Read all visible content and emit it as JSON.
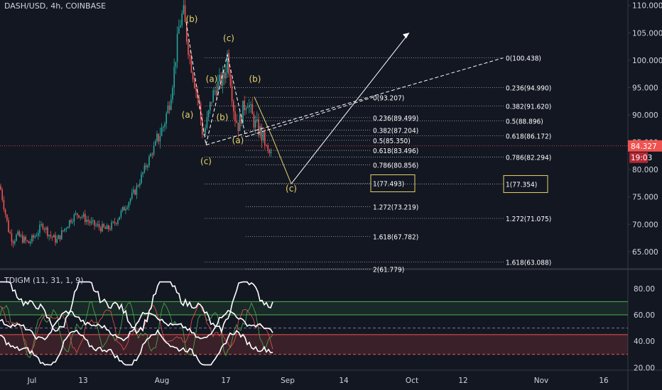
{
  "header": {
    "title": "DASH/USD, 4h, COINBASE"
  },
  "indicator": {
    "title": "TDIGM (11, 31, 1, 9)"
  },
  "colors": {
    "bg": "#131722",
    "grid": "#363a45",
    "text": "#d1d4dc",
    "up": "#26a69a",
    "down": "#ef5350",
    "label": "#e6d36a",
    "price_tag": "#ef5350"
  },
  "chart_data": [
    {
      "type": "candlestick",
      "title": "DASH/USD, 4h, COINBASE",
      "y_ticks": [
        "110.000",
        "105.000",
        "100.000",
        "95.000",
        "90.000",
        "85.000",
        "80.000",
        "75.000",
        "70.000",
        "65.000"
      ],
      "ylim": [
        62,
        111
      ],
      "x_ticks": [
        "Jul",
        "13",
        "Aug",
        "17",
        "Sep",
        "14",
        "Oct",
        "12",
        "Nov",
        "16"
      ],
      "price_path": [
        [
          0,
          77
        ],
        [
          6,
          73
        ],
        [
          12,
          69
        ],
        [
          18,
          67
        ],
        [
          24,
          68
        ],
        [
          30,
          67.5
        ],
        [
          40,
          66.5
        ],
        [
          50,
          68
        ],
        [
          60,
          70
        ],
        [
          70,
          68
        ],
        [
          80,
          67
        ],
        [
          90,
          69
        ],
        [
          100,
          71
        ],
        [
          110,
          72
        ],
        [
          120,
          71
        ],
        [
          130,
          70
        ],
        [
          140,
          69.5
        ],
        [
          150,
          69
        ],
        [
          160,
          70
        ],
        [
          170,
          72
        ],
        [
          180,
          74
        ],
        [
          190,
          76
        ],
        [
          200,
          79
        ],
        [
          210,
          82
        ],
        [
          220,
          85
        ],
        [
          230,
          88
        ],
        [
          238,
          92
        ],
        [
          245,
          98
        ],
        [
          252,
          106
        ],
        [
          258,
          109
        ],
        [
          263,
          104
        ],
        [
          268,
          100
        ],
        [
          274,
          96
        ],
        [
          280,
          92
        ],
        [
          286,
          86
        ],
        [
          292,
          89
        ],
        [
          298,
          93
        ],
        [
          304,
          95
        ],
        [
          310,
          96
        ],
        [
          316,
          97
        ],
        [
          320,
          101
        ],
        [
          325,
          96
        ],
        [
          330,
          90
        ],
        [
          336,
          88
        ],
        [
          342,
          91
        ],
        [
          348,
          93
        ],
        [
          354,
          90
        ],
        [
          360,
          88
        ],
        [
          366,
          87
        ],
        [
          372,
          85
        ],
        [
          378,
          83
        ],
        [
          382,
          82.8
        ]
      ],
      "current_price": "84.327",
      "countdown": "19:03",
      "wave_labels": [
        {
          "text": "(b)",
          "x": 270,
          "y": 107
        },
        {
          "text": "(c)",
          "x": 322,
          "y": 103.5
        },
        {
          "text": "(a)",
          "x": 298,
          "y": 96
        },
        {
          "text": "(b)",
          "x": 359,
          "y": 96
        },
        {
          "text": "(a)",
          "x": 264,
          "y": 89.5
        },
        {
          "text": "(b)",
          "x": 313,
          "y": 89
        },
        {
          "text": "(c)",
          "x": 290,
          "y": 81
        },
        {
          "text": "(a)",
          "x": 335,
          "y": 84.8
        },
        {
          "text": "(c)",
          "x": 410,
          "y": 76
        }
      ],
      "fib_levels": [
        {
          "text": "0(100.438)",
          "y": 100.438,
          "x0": 288,
          "x1": 710,
          "lx": 712
        },
        {
          "text": "0.236(94.990)",
          "y": 94.99,
          "x0": 288,
          "x1": 710,
          "lx": 712
        },
        {
          "text": "0.382(91.620)",
          "y": 91.62,
          "x0": 288,
          "x1": 710,
          "lx": 712
        },
        {
          "text": "0.5(88.896)",
          "y": 88.896,
          "x0": 288,
          "x1": 710,
          "lx": 712
        },
        {
          "text": "0.618(86.172)",
          "y": 86.172,
          "x0": 288,
          "x1": 710,
          "lx": 712
        },
        {
          "text": "0.786(82.294)",
          "y": 82.294,
          "x0": 288,
          "x1": 710,
          "lx": 712
        },
        {
          "text": "1(77.354)",
          "y": 77.354,
          "x0": 288,
          "x1": 710,
          "lx": 712,
          "boxed": true
        },
        {
          "text": "1.272(71.075)",
          "y": 71.075,
          "x0": 288,
          "x1": 710,
          "lx": 712
        },
        {
          "text": "1.618(63.088)",
          "y": 63.088,
          "x0": 288,
          "x1": 710,
          "lx": 712
        },
        {
          "text": "0(93.207)",
          "y": 93.207,
          "x0": 346,
          "x1": 523,
          "lx": 525
        },
        {
          "text": "0.236(89.499)",
          "y": 89.499,
          "x0": 346,
          "x1": 523,
          "lx": 525
        },
        {
          "text": "0.382(87.204)",
          "y": 87.204,
          "x0": 346,
          "x1": 523,
          "lx": 525
        },
        {
          "text": "0.5(85.350)",
          "y": 85.35,
          "x0": 346,
          "x1": 523,
          "lx": 525
        },
        {
          "text": "0.618(83.496)",
          "y": 83.496,
          "x0": 346,
          "x1": 523,
          "lx": 525
        },
        {
          "text": "0.786(80.856)",
          "y": 80.856,
          "x0": 346,
          "x1": 523,
          "lx": 525
        },
        {
          "text": "1(77.493)",
          "y": 77.493,
          "x0": 346,
          "x1": 523,
          "lx": 525,
          "boxed": true
        },
        {
          "text": "1.272(73.219)",
          "y": 73.219,
          "x0": 346,
          "x1": 523,
          "lx": 525
        },
        {
          "text": "1.618(67.782)",
          "y": 67.782,
          "x0": 346,
          "x1": 523,
          "lx": 525
        },
        {
          "text": "2(61.779)",
          "y": 61.779,
          "x0": 346,
          "x1": 523,
          "lx": 525
        }
      ],
      "projection_lines": [
        {
          "style": "solid",
          "color": "#e6d36a",
          "points": [
            [
              358,
              93.3
            ],
            [
              383,
              86
            ],
            [
              410,
              77.4
            ]
          ]
        },
        {
          "style": "solid",
          "color": "#ffffff",
          "points": [
            [
              410,
              77.4
            ],
            [
              576,
              105
            ]
          ]
        },
        {
          "style": "dashed",
          "color": "#ffffff",
          "points": [
            [
              290,
              84.5
            ],
            [
              708,
              100.4
            ]
          ]
        },
        {
          "style": "dashed",
          "color": "#ffffff",
          "points": [
            [
              346,
              86
            ],
            [
              525,
              93.2
            ]
          ]
        },
        {
          "style": "dashed",
          "color": "#ffffff",
          "points": [
            [
              262,
              107
            ],
            [
              290,
              84.5
            ],
            [
              320,
              101
            ],
            [
              346,
              86
            ]
          ]
        }
      ]
    },
    {
      "type": "line",
      "title": "TDIGM (11, 31, 1, 9)",
      "y_ticks": [
        "80.00",
        "60.00",
        "40.00",
        "20.00"
      ],
      "ylim": [
        18,
        88
      ],
      "levels": [
        {
          "y": 70,
          "color": "#4caf50",
          "style": "solid"
        },
        {
          "y": 60,
          "color": "#4caf50",
          "style": "solid"
        },
        {
          "y": 50,
          "color": "#787b86",
          "style": "dashed"
        },
        {
          "y": 45,
          "color": "#ef5350",
          "style": "solid"
        },
        {
          "y": 30,
          "color": "#ef5350",
          "style": "dashed"
        }
      ]
    }
  ]
}
